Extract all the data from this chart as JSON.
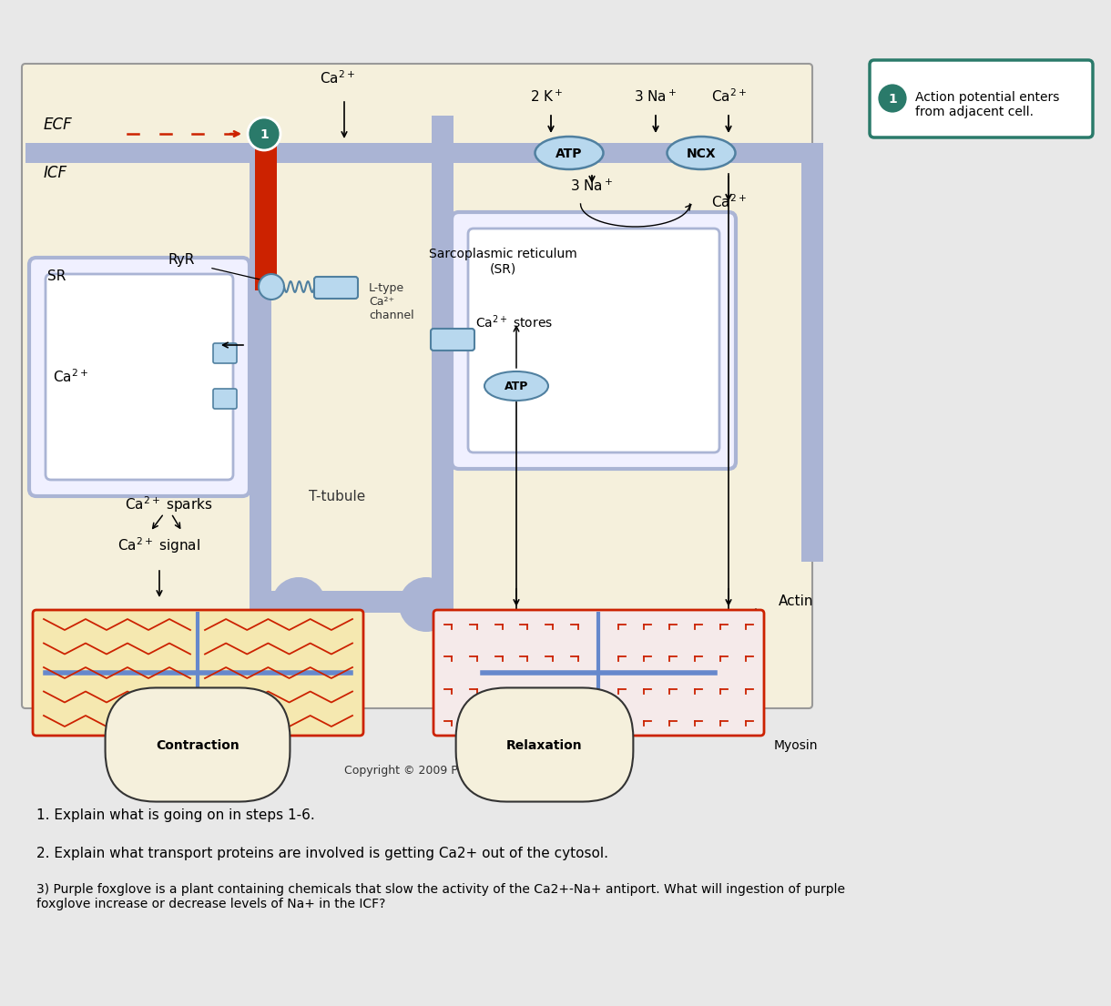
{
  "bg_color": "#f5f0dc",
  "page_bg": "#e8e8e8",
  "ecf_label": "ECF",
  "icf_label": "ICF",
  "sr_label": "SR",
  "ryr_label": "RyR",
  "ltype_label": "L-type\nCa²⁺\nchannel",
  "ttubule_label": "T-tubule",
  "sr2_title": "Sarcoplasmic reticulum\n(SR)",
  "ca_stores_label": "Ca²⁺ stores",
  "atp_label": "ATP",
  "ncx_label": "NCX",
  "k2_label": "2 K⁺",
  "na3_label": "3 Na⁺",
  "ca2_label": "Ca²⁺",
  "ca_sparks_label": "Ca²⁺ sparks",
  "ca_signal_label": "Ca²⁺ signal",
  "contraction_label": "Contraction",
  "relaxation_label": "Relaxation",
  "actin_label": "Actin",
  "myosin_label": "Myosin",
  "copyright_label": "Copyright © 2009 Pearson Education, Inc.",
  "action_potential_label": "Action potential enters\nfrom adjacent cell.",
  "q1": "1. Explain what is going on in steps 1-6.",
  "q2": "2. Explain what transport proteins are involved is getting Ca2+ out of the cytosol.",
  "q3": "3) Purple foxglove is a plant containing chemicals that slow the activity of the Ca2+-Na+ antiport. What will ingestion of purple\nfoxglove increase or decrease levels of Na+ in the ICF?",
  "membrane_color": "#aab4d4",
  "light_blue_fill": "#b8d8ee",
  "teal_circle": "#2a7a6a",
  "red_color": "#cc2200",
  "cell_bg": "#f5f0dc",
  "sr_fill": "#f0f0ff",
  "sr_border": "#aab4d4",
  "white": "#ffffff"
}
